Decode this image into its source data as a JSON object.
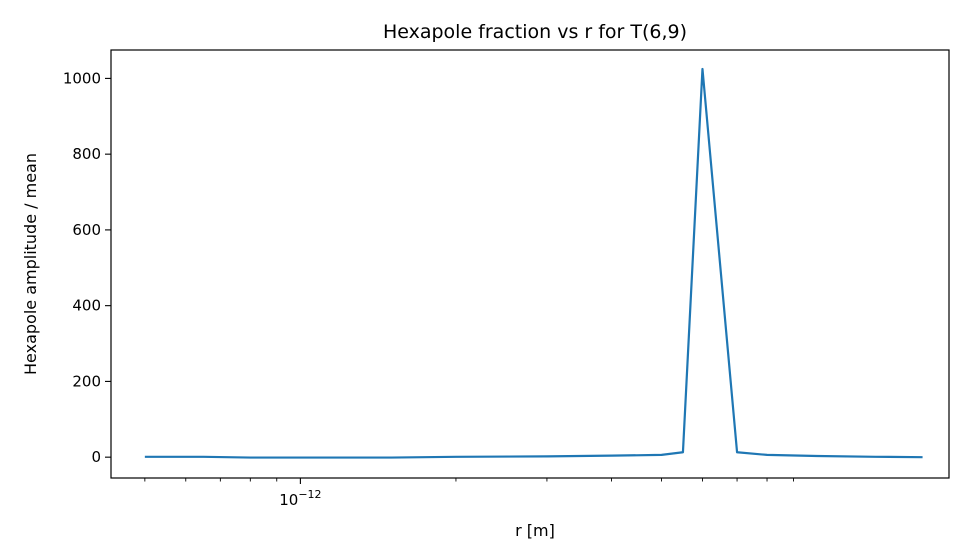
{
  "chart_data": {
    "type": "line",
    "title": "Hexapole fraction vs r for T(6,9)",
    "xlabel": "r [m]",
    "ylabel": "Hexapole amplitude / mean",
    "x_scale": "log",
    "xlim": [
      4.3e-13,
      1.8e-11
    ],
    "ylim": [
      -55,
      1075
    ],
    "x_ticks": [
      {
        "value": 1e-12,
        "base": "10",
        "exponent": "−12"
      }
    ],
    "x_minor_ticks": [
      5e-13,
      6e-13,
      7e-13,
      8e-13,
      9e-13,
      2e-12,
      3e-12,
      4e-12,
      5e-12,
      6e-12,
      7e-12,
      8e-12,
      9e-12
    ],
    "y_ticks": [
      {
        "value": 0,
        "label": "0"
      },
      {
        "value": 200,
        "label": "200"
      },
      {
        "value": 400,
        "label": "400"
      },
      {
        "value": 600,
        "label": "600"
      },
      {
        "value": 800,
        "label": "800"
      },
      {
        "value": 1000,
        "label": "1000"
      }
    ],
    "grid": false,
    "color": "#1f77b4",
    "series": [
      {
        "x": [
          5e-13,
          6.5e-13,
          8e-13,
          1e-12,
          1.5e-12,
          2e-12,
          3e-12,
          4e-12,
          5e-12,
          5.5e-12,
          6e-12,
          7e-12,
          8e-12,
          1e-11,
          1.3e-11,
          1.6e-11
        ],
        "y": [
          1,
          1,
          -1,
          -1,
          -1,
          1,
          2,
          4,
          6,
          13,
          1025,
          13,
          6,
          3,
          1,
          0
        ]
      }
    ]
  }
}
